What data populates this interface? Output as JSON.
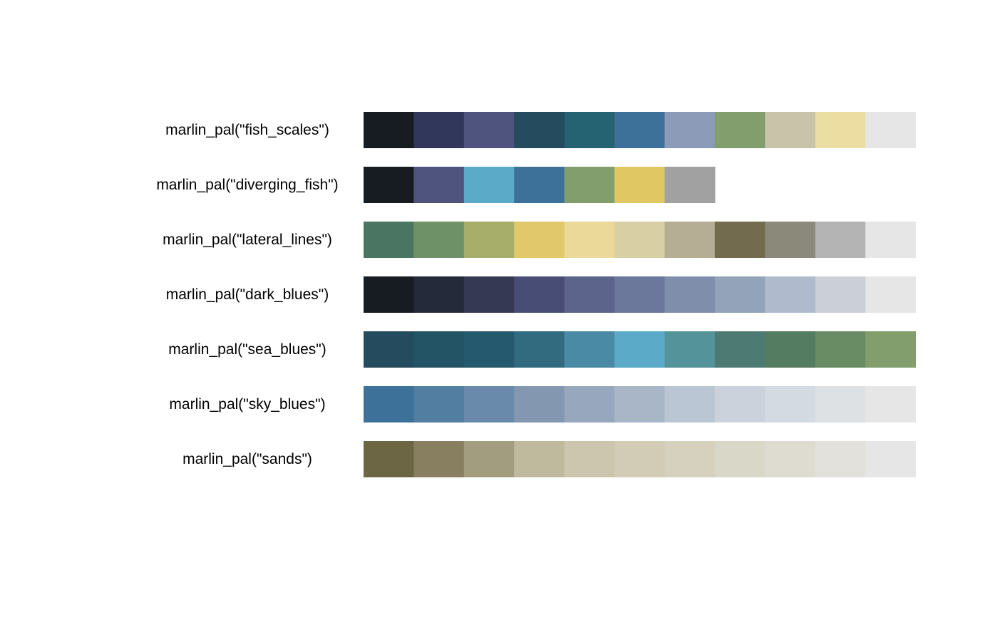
{
  "chart_data": {
    "type": "heatmap",
    "title": "",
    "palettes": [
      {
        "label": "marlin_pal(\"fish_scales\")",
        "colors": [
          "#171b22",
          "#30375b",
          "#4f547e",
          "#244b5e",
          "#256272",
          "#3e7199",
          "#8b9bb8",
          "#829e6c",
          "#c9c3aa",
          "#ecdda3",
          "#e6e6e6"
        ]
      },
      {
        "label": "marlin_pal(\"diverging_fish\")",
        "colors": [
          "#171b22",
          "#4f547e",
          "#5aaac8",
          "#3e7199",
          "#829e6c",
          "#e1c763",
          "#a1a1a1"
        ]
      },
      {
        "label": "marlin_pal(\"lateral_lines\")",
        "colors": [
          "#4a7562",
          "#6f9168",
          "#a7ae6a",
          "#e1c86b",
          "#ebd999",
          "#d9cfa5",
          "#b5ae95",
          "#726b4d",
          "#8b8979",
          "#b4b4b4",
          "#e6e6e6"
        ]
      },
      {
        "label": "marlin_pal(\"dark_blues\")",
        "colors": [
          "#171b22",
          "#252a3a",
          "#363954",
          "#484d75",
          "#5c648b",
          "#6b779b",
          "#7f8eab",
          "#92a3ba",
          "#afbbcd",
          "#cacfd8",
          "#e6e6e6"
        ]
      },
      {
        "label": "marlin_pal(\"sea_blues\")",
        "colors": [
          "#244b5e",
          "#235465",
          "#255a6e",
          "#326b80",
          "#4a8aa5",
          "#5aaac8",
          "#55939b",
          "#4d7b73",
          "#547c61",
          "#6a8c64",
          "#829e6c"
        ]
      },
      {
        "label": "marlin_pal(\"sky_blues\")",
        "colors": [
          "#3e7199",
          "#517ea1",
          "#698aab",
          "#8397b1",
          "#97a7bd",
          "#a8b6c8",
          "#bbc6d4",
          "#ccd2dc",
          "#d4dae1",
          "#dee1e4",
          "#e6e6e6"
        ]
      },
      {
        "label": "marlin_pal(\"sands\")",
        "colors": [
          "#6c6645",
          "#887f60",
          "#a29d7e",
          "#bfb99d",
          "#ccc6ae",
          "#d2cbb6",
          "#d6d0be",
          "#d9d7c7",
          "#dedbd0",
          "#e2e1dc",
          "#e6e6e6"
        ]
      }
    ]
  }
}
